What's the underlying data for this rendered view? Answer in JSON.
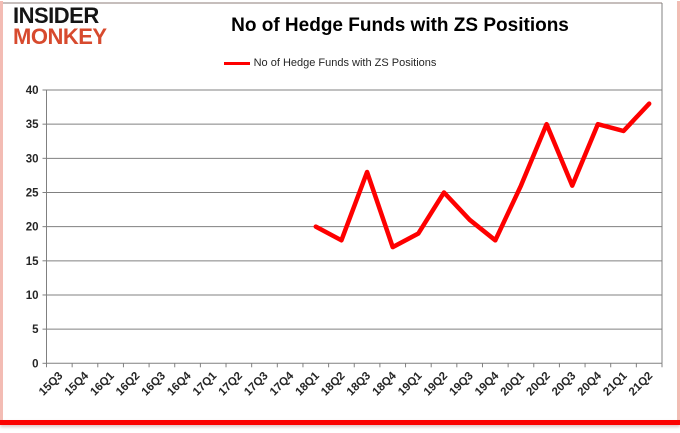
{
  "logo": {
    "line1": "INSIDER",
    "line2": "MONKEY"
  },
  "header": {
    "title": "No of Hedge Funds with ZS Positions"
  },
  "legend": {
    "label": "No of Hedge Funds with ZS Positions"
  },
  "colors": {
    "series_line": "#fe0000",
    "grid": "#808080",
    "axis_text": "#262626",
    "title_text": "#000000",
    "logo_black": "#151515",
    "logo_red": "#d74a2e",
    "border_side": "#f3bcb4",
    "border_top": "#b3a8a6",
    "border_bottom": "#fb0200"
  },
  "chart_data": {
    "type": "line",
    "title": "No of Hedge Funds with ZS Positions",
    "xlabel": "",
    "ylabel": "",
    "ylim": [
      0,
      40
    ],
    "yticks": [
      0,
      5,
      10,
      15,
      20,
      25,
      30,
      35,
      40
    ],
    "grid": true,
    "legend_position": "top",
    "categories": [
      "15Q3",
      "15Q4",
      "16Q1",
      "16Q2",
      "16Q3",
      "16Q4",
      "17Q1",
      "17Q2",
      "17Q3",
      "17Q4",
      "18Q1",
      "18Q2",
      "18Q3",
      "18Q4",
      "19Q1",
      "19Q2",
      "19Q3",
      "19Q4",
      "20Q1",
      "20Q2",
      "20Q3",
      "20Q4",
      "21Q1",
      "21Q2"
    ],
    "series": [
      {
        "name": "No of Hedge Funds with ZS Positions",
        "color": "#fe0000",
        "points": [
          {
            "x": "18Q1",
            "y": 20
          },
          {
            "x": "18Q2",
            "y": 18
          },
          {
            "x": "18Q3",
            "y": 28
          },
          {
            "x": "18Q4",
            "y": 17
          },
          {
            "x": "19Q1",
            "y": 19
          },
          {
            "x": "19Q2",
            "y": 25
          },
          {
            "x": "19Q3",
            "y": 21
          },
          {
            "x": "19Q4",
            "y": 18
          },
          {
            "x": "20Q1",
            "y": 26
          },
          {
            "x": "20Q2",
            "y": 35
          },
          {
            "x": "20Q3",
            "y": 26
          },
          {
            "x": "20Q4",
            "y": 35
          },
          {
            "x": "21Q1",
            "y": 34
          },
          {
            "x": "21Q2",
            "y": 38
          }
        ]
      }
    ]
  }
}
